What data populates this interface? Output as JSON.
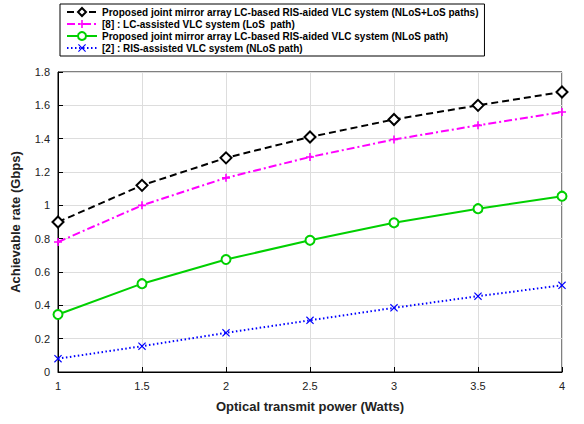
{
  "chart_data": {
    "type": "line",
    "x_label": "Optical transmit power (Watts)",
    "y_label": "Achievable rate (Gbps)",
    "x": [
      1,
      1.5,
      2,
      2.5,
      3,
      3.5,
      4
    ],
    "xlim": [
      1,
      4
    ],
    "xticks": [
      1,
      1.5,
      2,
      2.5,
      3,
      3.5,
      4
    ],
    "ylim": [
      0,
      1.8
    ],
    "yticks": [
      0,
      0.2,
      0.4,
      0.6,
      0.8,
      1,
      1.2,
      1.4,
      1.6,
      1.8
    ],
    "grid": true,
    "legend": "upper left",
    "series": [
      {
        "name": "Proposed joint mirror array LC-based RIS-aided VLC system (NLoS+LoS paths)",
        "color": "#000000",
        "marker": "diamond",
        "line_style": "dashed",
        "values": [
          0.9,
          1.12,
          1.285,
          1.41,
          1.515,
          1.6,
          1.68
        ]
      },
      {
        "name": "[8] : LC-assisted VLC system (LoS  path)",
        "color": "#ff00ff",
        "marker": "plus",
        "line_style": "dashdot",
        "values": [
          0.78,
          1.0,
          1.165,
          1.29,
          1.395,
          1.48,
          1.56
        ]
      },
      {
        "name": "Proposed joint mirror array LC-based RIS-aided VLC system (NLoS path)",
        "color": "#00d000",
        "marker": "circle",
        "line_style": "solid",
        "values": [
          0.345,
          0.53,
          0.675,
          0.79,
          0.895,
          0.98,
          1.055
        ]
      },
      {
        "name": "[2] : RIS-assisted VLC system (NLoS path)",
        "color": "#0000ff",
        "marker": "x",
        "line_style": "dotted",
        "values": [
          0.08,
          0.155,
          0.235,
          0.31,
          0.385,
          0.455,
          0.52
        ]
      }
    ]
  }
}
